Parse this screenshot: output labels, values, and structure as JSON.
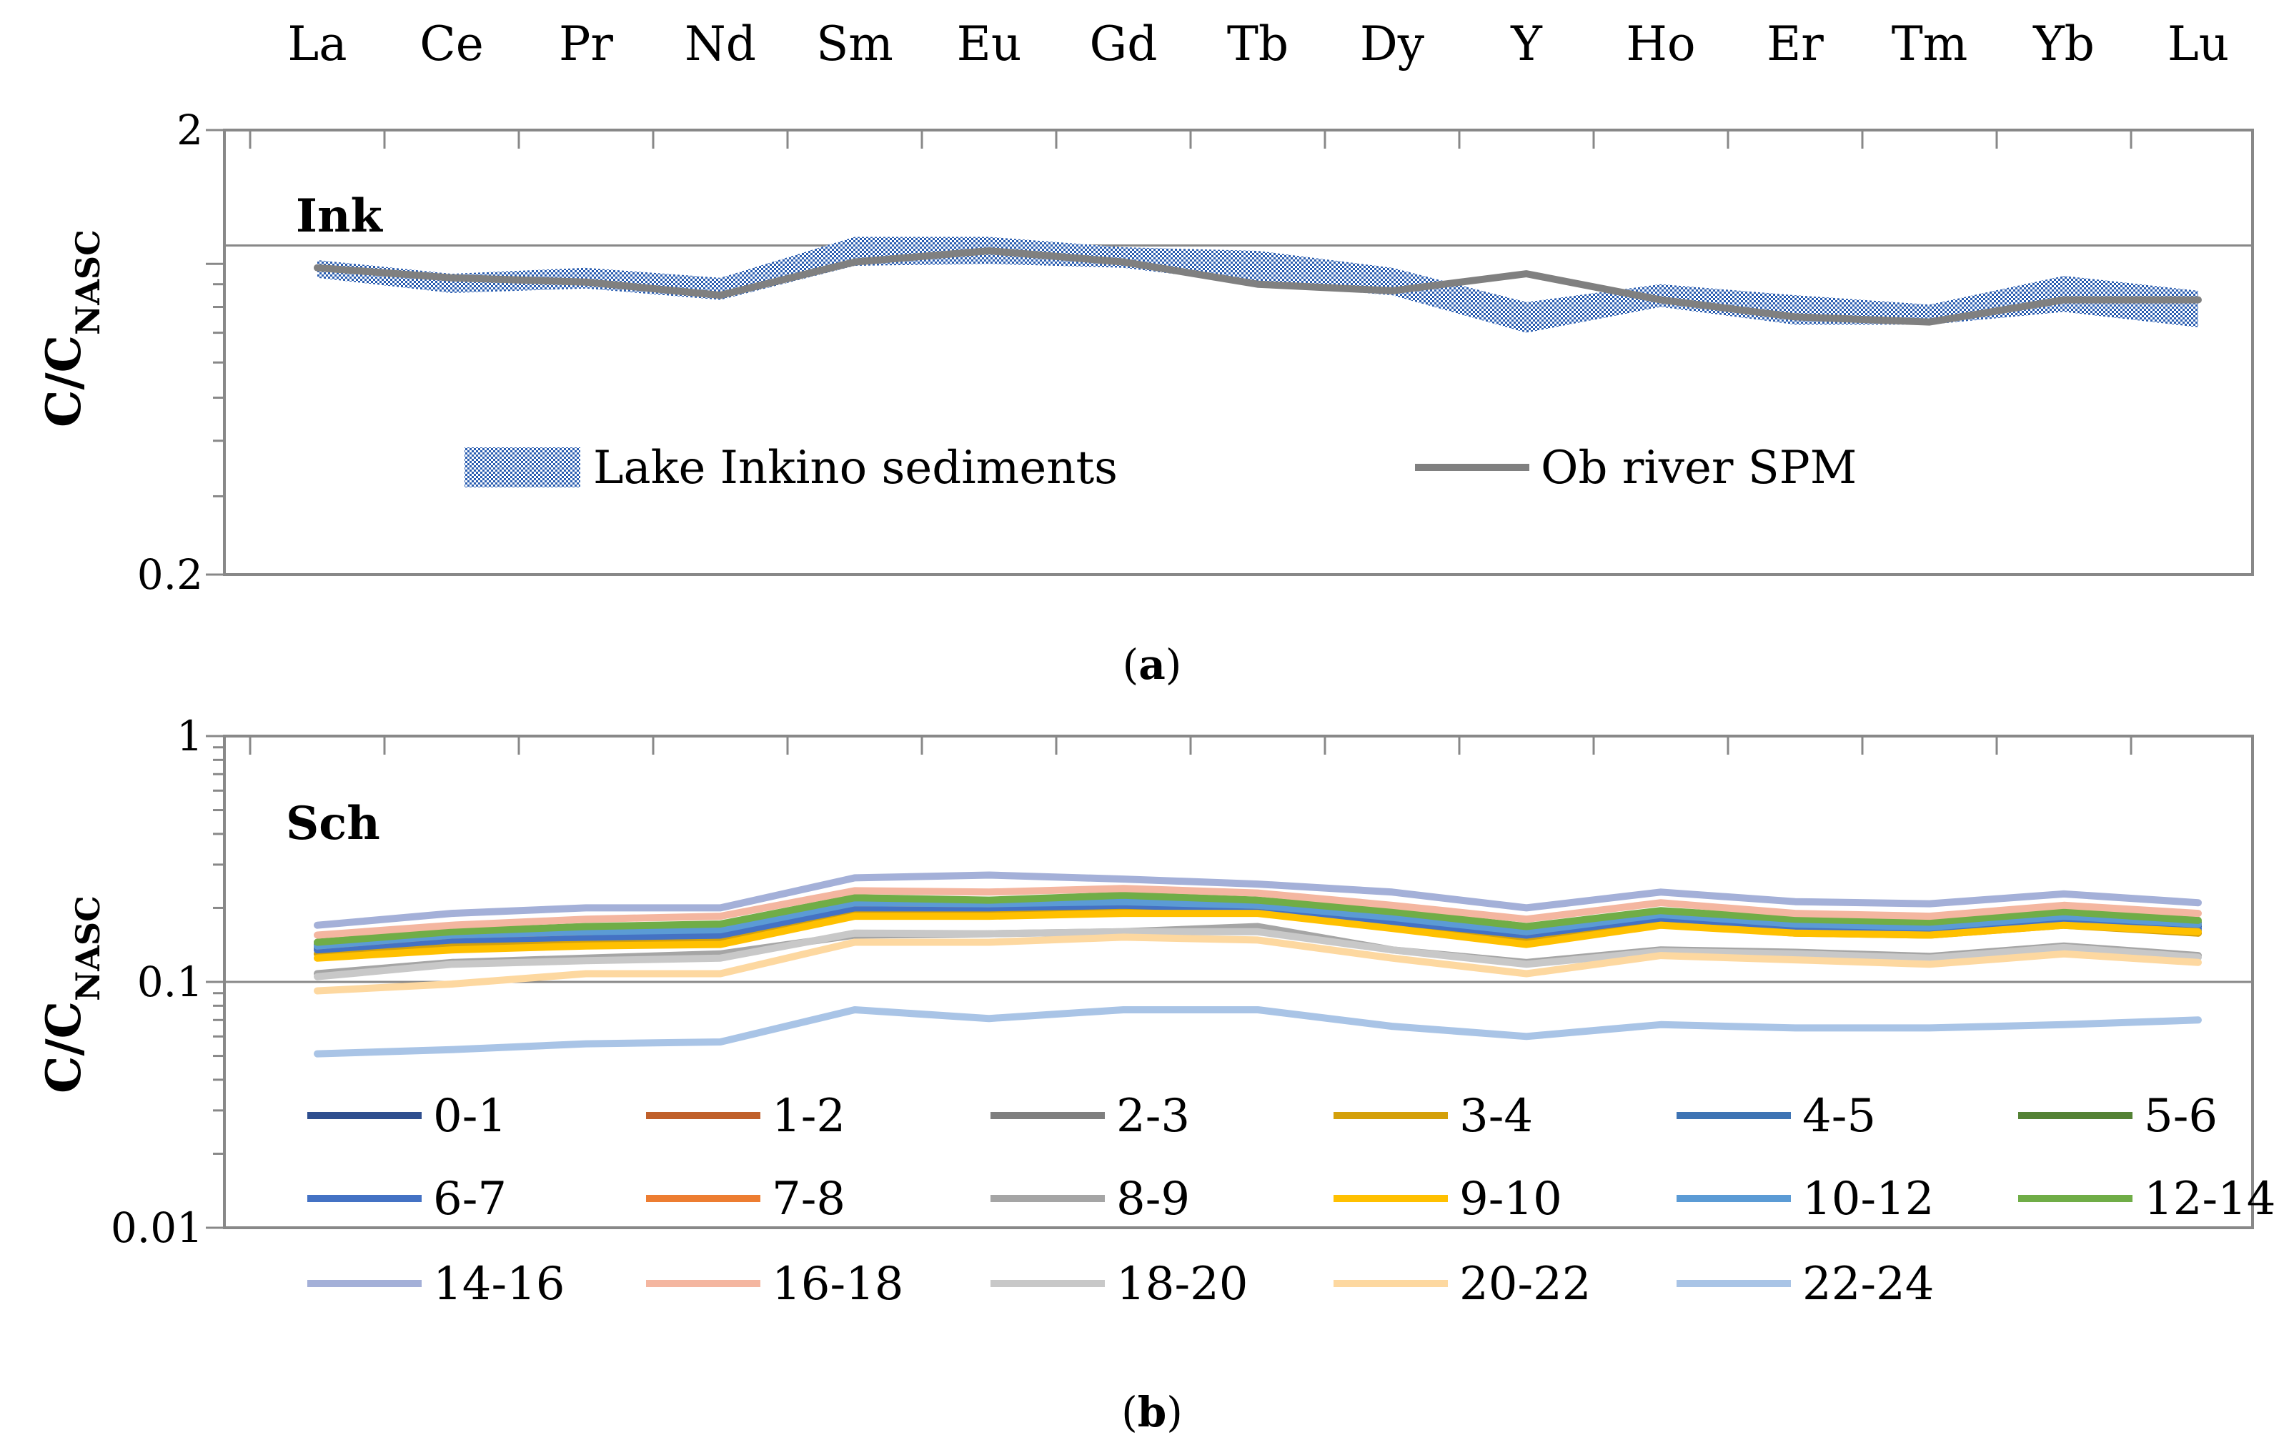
{
  "chart_data": [
    {
      "type": "line",
      "panel_title": "Ink",
      "caption_label": "a",
      "ylabel_main": "C/C",
      "ylabel_sub": "NASC",
      "yscale": "log",
      "ylim": [
        0.2,
        2
      ],
      "ytick_labels": [
        "2",
        "0.2"
      ],
      "categories": [
        "La",
        "Ce",
        "Pr",
        "Nd",
        "Sm",
        "Eu",
        "Gd",
        "Tb",
        "Dy",
        "Y",
        "Ho",
        "Er",
        "Tm",
        "Yb",
        "Lu"
      ],
      "band": {
        "name": "Lake Inkino sediments",
        "color": "#2a5db0",
        "upper": [
          1.02,
          0.95,
          0.98,
          0.93,
          1.15,
          1.15,
          1.09,
          1.07,
          0.98,
          0.82,
          0.9,
          0.85,
          0.81,
          0.94,
          0.87
        ],
        "lower": [
          0.93,
          0.86,
          0.88,
          0.83,
          0.99,
          1.0,
          0.98,
          0.9,
          0.85,
          0.7,
          0.8,
          0.73,
          0.73,
          0.78,
          0.72
        ]
      },
      "series": [
        {
          "name": "Ob river SPM",
          "color": "#808080",
          "values": [
            0.98,
            0.93,
            0.91,
            0.85,
            1.01,
            1.07,
            1.01,
            0.9,
            0.87,
            0.95,
            0.83,
            0.76,
            0.74,
            0.83,
            0.83
          ]
        }
      ],
      "legend_position": "bottom-inside"
    },
    {
      "type": "line",
      "panel_title": "Sch",
      "caption_label": "b",
      "ylabel_main": "C/C",
      "ylabel_sub": "NASC",
      "yscale": "log",
      "ylim": [
        0.01,
        1
      ],
      "ytick_labels": [
        "1",
        "0.1",
        "0.01"
      ],
      "categories": [
        "La",
        "Ce",
        "Pr",
        "Nd",
        "Sm",
        "Eu",
        "Gd",
        "Tb",
        "Dy",
        "Y",
        "Ho",
        "Er",
        "Tm",
        "Yb",
        "Lu"
      ],
      "series": [
        {
          "name": "0-1",
          "color": "#2f4f8f",
          "values": [
            0.136,
            0.15,
            0.155,
            0.158,
            0.205,
            0.205,
            0.21,
            0.2,
            0.18,
            0.155,
            0.185,
            0.17,
            0.165,
            0.18,
            0.168
          ]
        },
        {
          "name": "1-2",
          "color": "#c0602a",
          "values": [
            0.135,
            0.158,
            0.157,
            0.16,
            0.2,
            0.2,
            0.203,
            0.202,
            0.178,
            0.153,
            0.18,
            0.167,
            0.162,
            0.178,
            0.158
          ]
        },
        {
          "name": "2-3",
          "color": "#7f7f7f",
          "values": [
            0.13,
            0.145,
            0.148,
            0.15,
            0.195,
            0.196,
            0.2,
            0.195,
            0.172,
            0.15,
            0.177,
            0.163,
            0.158,
            0.174,
            0.162
          ]
        },
        {
          "name": "3-4",
          "color": "#d4a00a",
          "values": [
            0.13,
            0.14,
            0.142,
            0.145,
            0.19,
            0.19,
            0.195,
            0.205,
            0.168,
            0.147,
            0.172,
            0.158,
            0.155,
            0.17,
            0.158
          ]
        },
        {
          "name": "4-5",
          "color": "#3e74b4",
          "values": [
            0.138,
            0.152,
            0.156,
            0.16,
            0.207,
            0.206,
            0.21,
            0.202,
            0.18,
            0.158,
            0.187,
            0.172,
            0.167,
            0.183,
            0.17
          ]
        },
        {
          "name": "5-6",
          "color": "#548235",
          "values": [
            0.142,
            0.158,
            0.165,
            0.17,
            0.215,
            0.21,
            0.22,
            0.21,
            0.19,
            0.165,
            0.192,
            0.175,
            0.17,
            0.19,
            0.175
          ]
        },
        {
          "name": "6-7",
          "color": "#4472c4",
          "values": [
            0.135,
            0.148,
            0.152,
            0.155,
            0.2,
            0.2,
            0.205,
            0.198,
            0.176,
            0.155,
            0.182,
            0.168,
            0.162,
            0.178,
            0.165
          ]
        },
        {
          "name": "7-8",
          "color": "#ed7d31",
          "values": [
            0.14,
            0.155,
            0.16,
            0.165,
            0.21,
            0.208,
            0.215,
            0.205,
            0.185,
            0.16,
            0.19,
            0.173,
            0.168,
            0.186,
            0.172
          ]
        },
        {
          "name": "8-9",
          "color": "#a5a5a5",
          "values": [
            0.108,
            0.12,
            0.125,
            0.13,
            0.155,
            0.157,
            0.16,
            0.168,
            0.135,
            0.12,
            0.135,
            0.132,
            0.127,
            0.14,
            0.128
          ]
        },
        {
          "name": "9-10",
          "color": "#ffc000",
          "values": [
            0.125,
            0.135,
            0.14,
            0.142,
            0.185,
            0.185,
            0.19,
            0.19,
            0.165,
            0.142,
            0.17,
            0.158,
            0.155,
            0.17,
            0.16
          ]
        },
        {
          "name": "10-12",
          "color": "#5b9bd5",
          "values": [
            0.14,
            0.155,
            0.16,
            0.163,
            0.21,
            0.208,
            0.212,
            0.205,
            0.183,
            0.16,
            0.188,
            0.172,
            0.167,
            0.185,
            0.172
          ]
        },
        {
          "name": "12-14",
          "color": "#70ad47",
          "values": [
            0.145,
            0.16,
            0.168,
            0.172,
            0.22,
            0.215,
            0.225,
            0.215,
            0.193,
            0.168,
            0.195,
            0.18,
            0.175,
            0.193,
            0.178
          ]
        },
        {
          "name": "14-16",
          "color": "#a4b0d8",
          "values": [
            0.17,
            0.19,
            0.2,
            0.2,
            0.265,
            0.272,
            0.262,
            0.25,
            0.232,
            0.2,
            0.232,
            0.212,
            0.208,
            0.228,
            0.21
          ]
        },
        {
          "name": "16-18",
          "color": "#f4b6a0",
          "values": [
            0.155,
            0.17,
            0.18,
            0.185,
            0.235,
            0.232,
            0.24,
            0.23,
            0.205,
            0.18,
            0.21,
            0.19,
            0.185,
            0.205,
            0.19
          ]
        },
        {
          "name": "18-20",
          "color": "#c8c8c8",
          "values": [
            0.105,
            0.118,
            0.122,
            0.125,
            0.158,
            0.157,
            0.16,
            0.16,
            0.135,
            0.118,
            0.133,
            0.13,
            0.125,
            0.138,
            0.126
          ]
        },
        {
          "name": "20-22",
          "color": "#fdd8a0",
          "values": [
            0.092,
            0.098,
            0.108,
            0.108,
            0.145,
            0.145,
            0.152,
            0.148,
            0.125,
            0.108,
            0.128,
            0.123,
            0.118,
            0.13,
            0.12
          ]
        },
        {
          "name": "22-24",
          "color": "#a9c4e6",
          "values": [
            0.051,
            0.053,
            0.056,
            0.057,
            0.077,
            0.071,
            0.077,
            0.077,
            0.066,
            0.06,
            0.067,
            0.065,
            0.065,
            0.067,
            0.07
          ]
        }
      ],
      "legend_position": "bottom-inside"
    }
  ]
}
